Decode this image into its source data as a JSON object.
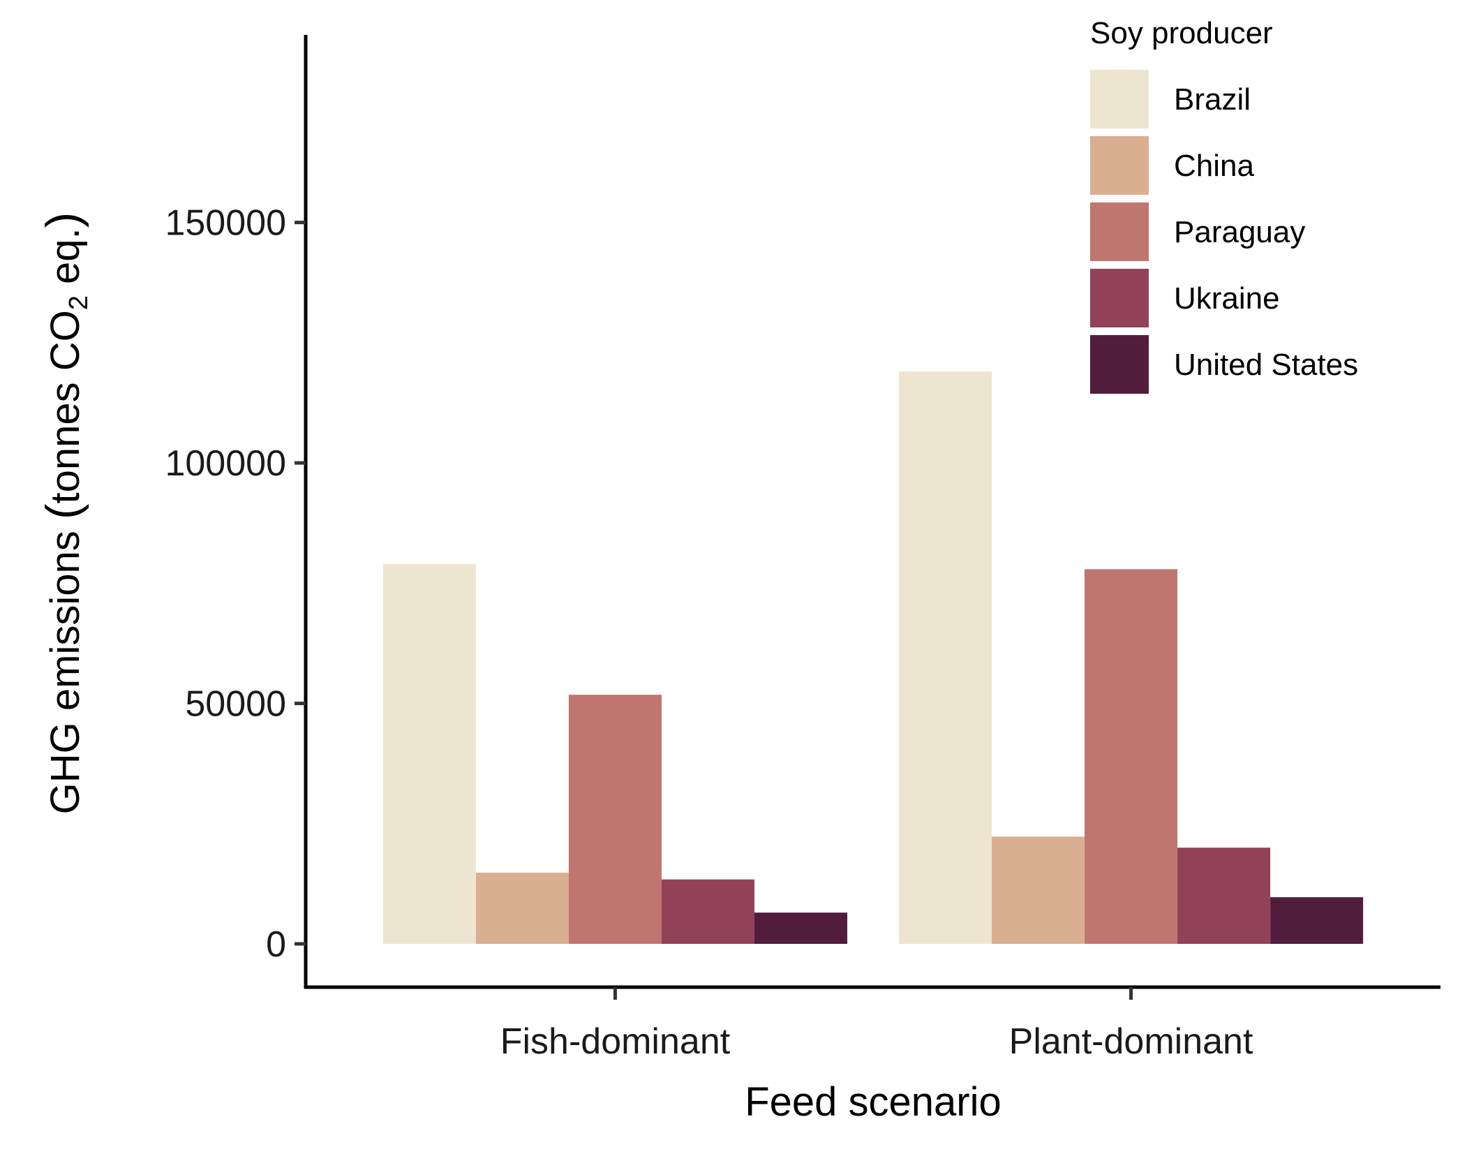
{
  "chart_data": {
    "type": "bar",
    "title": "",
    "xlabel": "Feed scenario",
    "ylabel": {
      "prefix": "GHG emissions ",
      "paren_open": "(",
      "inner": "tonnes CO",
      "subscript": "2",
      "suffix": " eq.",
      "paren_close": ")"
    },
    "categories": [
      "Fish-dominant",
      "Plant-dominant"
    ],
    "series": [
      {
        "name": "Brazil",
        "color": "#EEE5D0",
        "values": [
          79000,
          119000
        ]
      },
      {
        "name": "China",
        "color": "#DAAE91",
        "values": [
          14800,
          22300
        ]
      },
      {
        "name": "Paraguay",
        "color": "#C07670",
        "values": [
          51800,
          77900
        ]
      },
      {
        "name": "Ukraine",
        "color": "#924258",
        "values": [
          13400,
          20000
        ]
      },
      {
        "name": "United States",
        "color": "#521D3D",
        "values": [
          6500,
          9700
        ]
      }
    ],
    "yticks": [
      0,
      50000,
      100000,
      150000
    ],
    "ytick_labels": [
      "0",
      "50000",
      "100000",
      "150000"
    ],
    "ylim": [
      -9000,
      189000
    ],
    "grid": false,
    "legend": {
      "title": "Soy producer",
      "position": "top-right"
    }
  }
}
